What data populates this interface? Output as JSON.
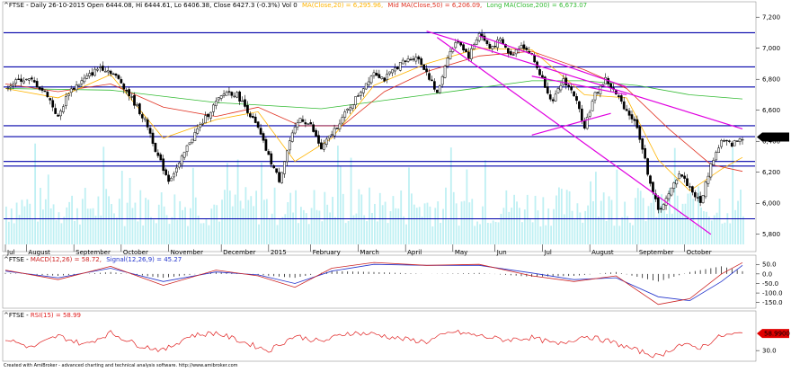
{
  "colors": {
    "candle": "#000000",
    "volume": "#bff0f3",
    "short_ma": "#ffb400",
    "mid_ma": "#e03020",
    "long_ma": "#33bb33",
    "hline": "#0000aa",
    "trend": "#e000e0",
    "macd": "#cc2222",
    "signal": "#2233cc",
    "rsi": "#e02020",
    "badge": "#000000",
    "rsi_badge": "#e00000"
  },
  "header": {
    "ticker": "^FTSE - Daily 26-10-2015 Open 6444.08, Hi 6444.61, Lo 6406.38, Close 6427.3 (-0.3%) Vol 0",
    "short_ma": "MA(Close,20) = 6,295.96,",
    "mid_ma": "Mid MA(Close,50) = 6,206.09,",
    "long_ma": "Long MA(Close,200) = 6,673.07"
  },
  "macd_header": {
    "prefix": "^FTSE - ",
    "macd": "MACD(12,26) = 58.72,",
    "signal": "Signal(12,26,9) = 45.27"
  },
  "rsi_header": {
    "prefix": "^FTSE - ",
    "rsi": "RSI(15) = 58.99"
  },
  "footer": "Created with AmiBroker - advanced charting and technical analysis software. http://www.amibroker.com",
  "price_badge": "6,427.3",
  "rsi_badge": "58.9900",
  "chart_data": [
    {
      "type": "candlestick",
      "panel": "price",
      "y_ticks": [
        "7,200",
        "7,000",
        "6,800",
        "6,600",
        "6,400",
        "6,200",
        "6,000",
        "5,800"
      ],
      "ylim": [
        5700,
        7230
      ],
      "x_labels": [
        "Jul",
        "August",
        "September",
        "October",
        "November",
        "December",
        "2015",
        "February",
        "March",
        "April",
        "May",
        "Jun",
        "Jul",
        "August",
        "September",
        "October"
      ],
      "horizontal_lines": [
        7100,
        6880,
        6750,
        6500,
        6430,
        6270,
        6240,
        5900
      ],
      "close_path": [
        [
          0,
          6750
        ],
        [
          3,
          6800
        ],
        [
          5,
          6790
        ],
        [
          8,
          6700
        ],
        [
          10,
          6550
        ],
        [
          12,
          6720
        ],
        [
          15,
          6800
        ],
        [
          18,
          6880
        ],
        [
          20,
          6850
        ],
        [
          22,
          6780
        ],
        [
          25,
          6620
        ],
        [
          27,
          6500
        ],
        [
          29,
          6300
        ],
        [
          31,
          6150
        ],
        [
          33,
          6250
        ],
        [
          35,
          6400
        ],
        [
          38,
          6550
        ],
        [
          40,
          6650
        ],
        [
          42,
          6720
        ],
        [
          44,
          6700
        ],
        [
          46,
          6600
        ],
        [
          48,
          6480
        ],
        [
          50,
          6300
        ],
        [
          52,
          6150
        ],
        [
          54,
          6400
        ],
        [
          56,
          6550
        ],
        [
          58,
          6500
        ],
        [
          60,
          6350
        ],
        [
          62,
          6450
        ],
        [
          65,
          6600
        ],
        [
          68,
          6750
        ],
        [
          70,
          6850
        ],
        [
          72,
          6800
        ],
        [
          75,
          6900
        ],
        [
          78,
          6950
        ],
        [
          80,
          6850
        ],
        [
          82,
          6700
        ],
        [
          84,
          6950
        ],
        [
          86,
          7050
        ],
        [
          88,
          6950
        ],
        [
          90,
          7100
        ],
        [
          92,
          7000
        ],
        [
          94,
          7050
        ],
        [
          96,
          6950
        ],
        [
          98,
          7030
        ],
        [
          100,
          6950
        ],
        [
          102,
          6800
        ],
        [
          104,
          6650
        ],
        [
          106,
          6800
        ],
        [
          108,
          6700
        ],
        [
          110,
          6500
        ],
        [
          112,
          6700
        ],
        [
          114,
          6800
        ],
        [
          116,
          6700
        ],
        [
          118,
          6600
        ],
        [
          120,
          6500
        ],
        [
          122,
          6200
        ],
        [
          124,
          5950
        ],
        [
          126,
          6050
        ],
        [
          128,
          6200
        ],
        [
          130,
          6100
        ],
        [
          132,
          6000
        ],
        [
          134,
          6250
        ],
        [
          136,
          6400
        ],
        [
          138,
          6380
        ],
        [
          140,
          6427
        ]
      ],
      "short_ma": [
        [
          0,
          6740
        ],
        [
          10,
          6680
        ],
        [
          20,
          6830
        ],
        [
          30,
          6420
        ],
        [
          40,
          6540
        ],
        [
          48,
          6590
        ],
        [
          55,
          6270
        ],
        [
          62,
          6420
        ],
        [
          70,
          6760
        ],
        [
          80,
          6900
        ],
        [
          90,
          7000
        ],
        [
          100,
          6990
        ],
        [
          110,
          6700
        ],
        [
          118,
          6680
        ],
        [
          124,
          6280
        ],
        [
          130,
          6080
        ],
        [
          136,
          6220
        ],
        [
          140,
          6296
        ]
      ],
      "mid_ma": [
        [
          0,
          6770
        ],
        [
          10,
          6720
        ],
        [
          20,
          6770
        ],
        [
          30,
          6620
        ],
        [
          40,
          6560
        ],
        [
          48,
          6620
        ],
        [
          56,
          6500
        ],
        [
          64,
          6500
        ],
        [
          72,
          6720
        ],
        [
          80,
          6850
        ],
        [
          90,
          6950
        ],
        [
          100,
          6980
        ],
        [
          110,
          6860
        ],
        [
          118,
          6740
        ],
        [
          126,
          6480
        ],
        [
          134,
          6250
        ],
        [
          140,
          6206
        ]
      ],
      "long_ma": [
        [
          0,
          6740
        ],
        [
          20,
          6730
        ],
        [
          40,
          6650
        ],
        [
          60,
          6610
        ],
        [
          80,
          6700
        ],
        [
          100,
          6790
        ],
        [
          110,
          6790
        ],
        [
          120,
          6760
        ],
        [
          130,
          6700
        ],
        [
          140,
          6673
        ]
      ],
      "trendlines": [
        {
          "name": "upper-resistance",
          "points": [
            [
              80,
              7110
            ],
            [
              140,
              6480
            ]
          ]
        },
        {
          "name": "lower-support",
          "points": [
            [
              82,
              7070
            ],
            [
              134,
              5800
            ]
          ]
        },
        {
          "name": "channel-upper-2",
          "points": [
            [
              90,
              7080
            ],
            [
              118,
              6750
            ]
          ]
        },
        {
          "name": "wedge-top",
          "points": [
            [
              100,
              6820
            ],
            [
              118,
              6700
            ]
          ]
        },
        {
          "name": "wedge-bottom",
          "points": [
            [
              100,
              6440
            ],
            [
              115,
              6580
            ]
          ]
        }
      ]
    },
    {
      "type": "line",
      "panel": "macd",
      "y_ticks": [
        "50.0",
        "0.0",
        "-50.0",
        "-100.0",
        "-150.0"
      ],
      "ylim": [
        -175,
        70
      ],
      "series": [
        {
          "name": "MACD(12,26)",
          "values": [
            [
              0,
              20
            ],
            [
              10,
              -30
            ],
            [
              20,
              40
            ],
            [
              30,
              -60
            ],
            [
              40,
              20
            ],
            [
              48,
              -10
            ],
            [
              55,
              -70
            ],
            [
              62,
              30
            ],
            [
              70,
              60
            ],
            [
              80,
              45
            ],
            [
              90,
              50
            ],
            [
              100,
              -10
            ],
            [
              108,
              -40
            ],
            [
              116,
              -10
            ],
            [
              124,
              -160
            ],
            [
              130,
              -130
            ],
            [
              136,
              0
            ],
            [
              140,
              59
            ]
          ]
        },
        {
          "name": "Signal(12,26,9)",
          "values": [
            [
              0,
              15
            ],
            [
              10,
              -20
            ],
            [
              20,
              30
            ],
            [
              30,
              -40
            ],
            [
              40,
              10
            ],
            [
              48,
              -5
            ],
            [
              55,
              -50
            ],
            [
              62,
              15
            ],
            [
              70,
              50
            ],
            [
              80,
              45
            ],
            [
              90,
              45
            ],
            [
              100,
              5
            ],
            [
              108,
              -30
            ],
            [
              116,
              -20
            ],
            [
              124,
              -120
            ],
            [
              130,
              -140
            ],
            [
              136,
              -40
            ],
            [
              140,
              45
            ]
          ]
        }
      ]
    },
    {
      "type": "line",
      "panel": "rsi",
      "y_ticks": [
        "30.0"
      ],
      "ylim": [
        15,
        85
      ],
      "series": [
        {
          "name": "RSI(15)",
          "values": [
            [
              0,
              50
            ],
            [
              5,
              35
            ],
            [
              10,
              55
            ],
            [
              15,
              40
            ],
            [
              20,
              60
            ],
            [
              25,
              40
            ],
            [
              30,
              30
            ],
            [
              35,
              55
            ],
            [
              40,
              60
            ],
            [
              45,
              45
            ],
            [
              50,
              30
            ],
            [
              55,
              55
            ],
            [
              60,
              45
            ],
            [
              65,
              60
            ],
            [
              70,
              58
            ],
            [
              75,
              50
            ],
            [
              80,
              45
            ],
            [
              85,
              62
            ],
            [
              90,
              55
            ],
            [
              95,
              48
            ],
            [
              100,
              52
            ],
            [
              105,
              40
            ],
            [
              110,
              55
            ],
            [
              115,
              45
            ],
            [
              120,
              30
            ],
            [
              124,
              20
            ],
            [
              128,
              40
            ],
            [
              132,
              35
            ],
            [
              136,
              55
            ],
            [
              140,
              59
            ]
          ]
        }
      ]
    }
  ]
}
